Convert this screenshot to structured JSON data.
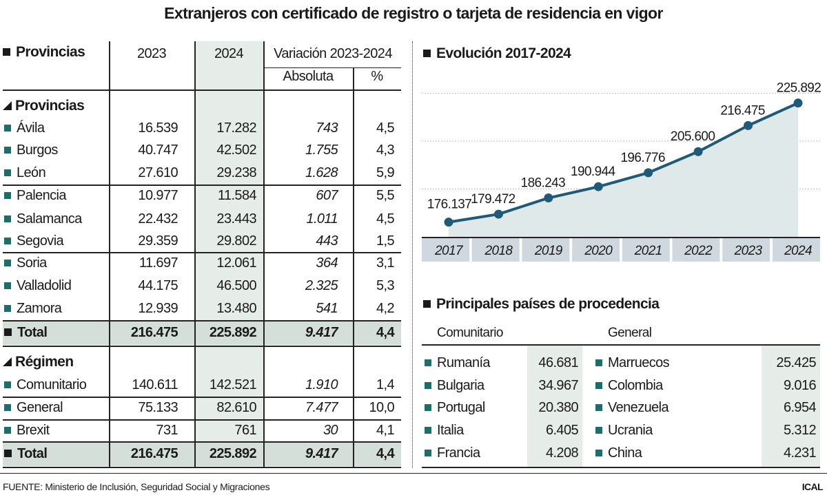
{
  "title": "Extranjeros con certificado de registro o tarjeta de residencia en vigor",
  "table": {
    "header": {
      "label": "Provincias",
      "y2023": "2023",
      "y2024": "2024",
      "variacion": "Variación 2023-2024",
      "absoluta": "Absoluta",
      "pct": "%"
    },
    "provincias_title": "Provincias",
    "provincias": [
      {
        "name": "Ávila",
        "v2023": "16.539",
        "v2024": "17.282",
        "abs": "743",
        "pct": "4,5"
      },
      {
        "name": "Burgos",
        "v2023": "40.747",
        "v2024": "42.502",
        "abs": "1.755",
        "pct": "4,3"
      },
      {
        "name": "León",
        "v2023": "27.610",
        "v2024": "29.238",
        "abs": "1.628",
        "pct": "5,9"
      },
      {
        "name": "Palencia",
        "v2023": "10.977",
        "v2024": "11.584",
        "abs": "607",
        "pct": "5,5"
      },
      {
        "name": "Salamanca",
        "v2023": "22.432",
        "v2024": "23.443",
        "abs": "1.011",
        "pct": "4,5"
      },
      {
        "name": "Segovia",
        "v2023": "29.359",
        "v2024": "29.802",
        "abs": "443",
        "pct": "1,5"
      },
      {
        "name": "Soria",
        "v2023": "11.697",
        "v2024": "12.061",
        "abs": "364",
        "pct": "3,1"
      },
      {
        "name": "Valladolid",
        "v2023": "44.175",
        "v2024": "46.500",
        "abs": "2.325",
        "pct": "5,3"
      },
      {
        "name": "Zamora",
        "v2023": "12.939",
        "v2024": "13.480",
        "abs": "541",
        "pct": "4,2"
      }
    ],
    "provincias_total": {
      "name": "Total",
      "v2023": "216.475",
      "v2024": "225.892",
      "abs": "9.417",
      "pct": "4,4"
    },
    "regimen_title": "Régimen",
    "regimen": [
      {
        "name": "Comunitario",
        "v2023": "140.611",
        "v2024": "142.521",
        "abs": "1.910",
        "pct": "1,4"
      },
      {
        "name": "General",
        "v2023": "75.133",
        "v2024": "82.610",
        "abs": "7.477",
        "pct": "10,0"
      },
      {
        "name": "Brexit",
        "v2023": "731",
        "v2024": "761",
        "abs": "30",
        "pct": "4,1"
      }
    ],
    "regimen_total": {
      "name": "Total",
      "v2023": "216.475",
      "v2024": "225.892",
      "abs": "9.417",
      "pct": "4,4"
    }
  },
  "evolucion_title": "Evolución 2017-2024",
  "chart_data": {
    "type": "area",
    "title": "Evolución 2017-2024",
    "categories": [
      "2017",
      "2018",
      "2019",
      "2020",
      "2021",
      "2022",
      "2023",
      "2024"
    ],
    "values": [
      176137,
      179472,
      186243,
      190944,
      196776,
      205600,
      216475,
      225892
    ],
    "labels": [
      "176.137",
      "179.472",
      "186.243",
      "190.944",
      "196.776",
      "205.600",
      "216.475",
      "225.892"
    ],
    "ylim": [
      170000,
      230000
    ],
    "gridlines": [
      190000,
      210000,
      230000
    ],
    "grid": true,
    "colors": {
      "line": "#1f5a78",
      "fill": "#e0e9ea",
      "band": "#cfd8de"
    }
  },
  "paises": {
    "title": "Principales países de procedencia",
    "comunitario_label": "Comunitario",
    "general_label": "General",
    "comunitario": [
      {
        "name": "Rumanía",
        "value": "46.681"
      },
      {
        "name": "Bulgaria",
        "value": "34.967"
      },
      {
        "name": "Portugal",
        "value": "20.380"
      },
      {
        "name": "Italia",
        "value": "6.405"
      },
      {
        "name": "Francia",
        "value": "4.208"
      }
    ],
    "general": [
      {
        "name": "Marruecos",
        "value": "25.425"
      },
      {
        "name": "Colombia",
        "value": "9.016"
      },
      {
        "name": "Venezuela",
        "value": "6.954"
      },
      {
        "name": "Ucrania",
        "value": "5.312"
      },
      {
        "name": "China",
        "value": "4.231"
      }
    ]
  },
  "footer": {
    "source": "FUENTE: Ministerio de Inclusión, Seguridad Social y Migraciones",
    "credit": "ICAL"
  },
  "colors": {
    "accent": "#1b6e6a",
    "shade": "#e6ece8",
    "total_shade": "#d3dfd8"
  }
}
